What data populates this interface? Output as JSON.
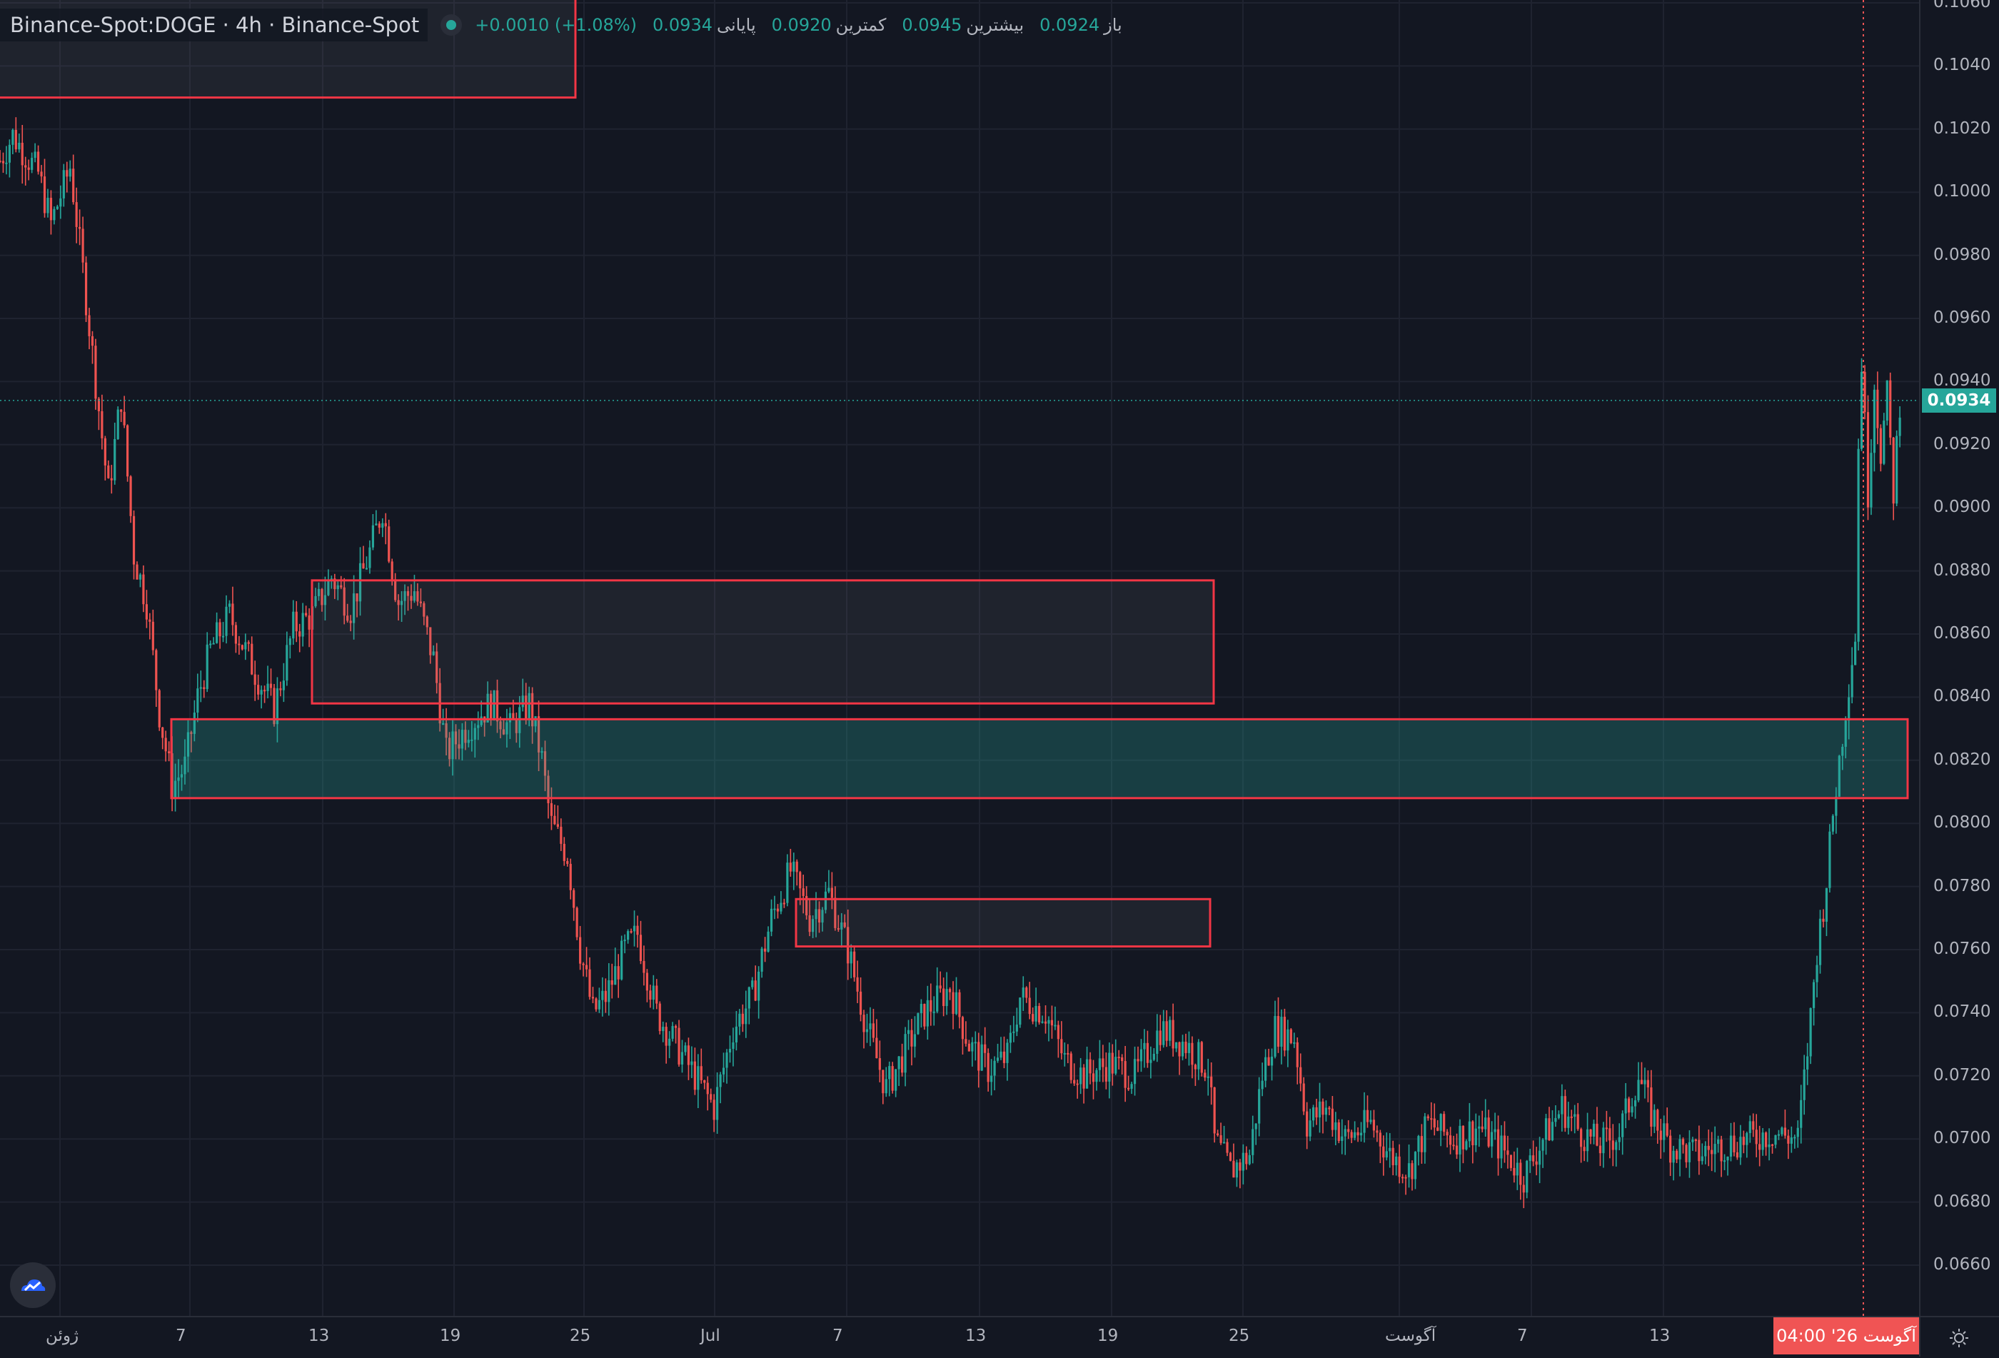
{
  "legend": {
    "symbol": "Binance-Spot:DOGE · 4h · Binance-Spot",
    "open_label": "باز",
    "open": "0.0924",
    "high_label": "بیشترین",
    "high": "0.0945",
    "low_label": "کمترین",
    "low": "0.0920",
    "close_label": "پایانی",
    "close": "0.0934",
    "change": "+0.0010 (+1.08%)"
  },
  "price_axis": {
    "ticks": [
      "0.1060",
      "0.1040",
      "0.1020",
      "0.1000",
      "0.0980",
      "0.0960",
      "0.0940",
      "0.0920",
      "0.0900",
      "0.0880",
      "0.0860",
      "0.0840",
      "0.0820",
      "0.0800",
      "0.0780",
      "0.0760",
      "0.0740",
      "0.0720",
      "0.0700",
      "0.0680",
      "0.0660"
    ],
    "current_price": "0.0934"
  },
  "time_axis": {
    "ticks": [
      "ژوئن",
      "7",
      "13",
      "19",
      "25",
      "Jul",
      "7",
      "13",
      "19",
      "25",
      "آگوست",
      "7",
      "13"
    ],
    "cursor_label": "04:00  '26 آگوست"
  },
  "colors": {
    "background": "#131722",
    "up": "#26a69a",
    "down": "#ef5350",
    "zone_border": "#f23645",
    "zone_fill_gray": "#2a2e39",
    "zone_fill_teal": "#1e4a4a"
  },
  "chart_data": {
    "type": "candlestick",
    "timeframe": "4h",
    "ylim": [
      0.065,
      0.1065
    ],
    "price_path": [
      [
        0,
        0.101
      ],
      [
        10,
        0.1018
      ],
      [
        30,
        0.1006
      ],
      [
        40,
        0.099
      ],
      [
        55,
        0.1008
      ],
      [
        65,
        0.0975
      ],
      [
        75,
        0.094
      ],
      [
        85,
        0.0905
      ],
      [
        95,
        0.0935
      ],
      [
        105,
        0.0885
      ],
      [
        115,
        0.087
      ],
      [
        125,
        0.0835
      ],
      [
        135,
        0.0812
      ],
      [
        145,
        0.0818
      ],
      [
        155,
        0.084
      ],
      [
        165,
        0.0855
      ],
      [
        180,
        0.0866
      ],
      [
        200,
        0.0848
      ],
      [
        215,
        0.0836
      ],
      [
        230,
        0.0862
      ],
      [
        245,
        0.0866
      ],
      [
        260,
        0.0878
      ],
      [
        275,
        0.0868
      ],
      [
        290,
        0.0886
      ],
      [
        300,
        0.09
      ],
      [
        312,
        0.087
      ],
      [
        325,
        0.0874
      ],
      [
        340,
        0.0852
      ],
      [
        350,
        0.0822
      ],
      [
        365,
        0.083
      ],
      [
        385,
        0.0838
      ],
      [
        400,
        0.083
      ],
      [
        415,
        0.0838
      ],
      [
        425,
        0.082
      ],
      [
        432,
        0.08
      ],
      [
        445,
        0.079
      ],
      [
        455,
        0.076
      ],
      [
        465,
        0.074
      ],
      [
        475,
        0.0745
      ],
      [
        490,
        0.076
      ],
      [
        500,
        0.0765
      ],
      [
        515,
        0.074
      ],
      [
        530,
        0.073
      ],
      [
        545,
        0.072
      ],
      [
        560,
        0.071
      ],
      [
        575,
        0.0735
      ],
      [
        590,
        0.0745
      ],
      [
        605,
        0.077
      ],
      [
        620,
        0.0785
      ],
      [
        635,
        0.077
      ],
      [
        650,
        0.0778
      ],
      [
        665,
        0.076
      ],
      [
        680,
        0.0735
      ],
      [
        695,
        0.0716
      ],
      [
        710,
        0.0728
      ],
      [
        725,
        0.074
      ],
      [
        745,
        0.0748
      ],
      [
        760,
        0.073
      ],
      [
        775,
        0.0722
      ],
      [
        790,
        0.0726
      ],
      [
        800,
        0.0745
      ],
      [
        820,
        0.074
      ],
      [
        835,
        0.0725
      ],
      [
        850,
        0.072
      ],
      [
        870,
        0.0724
      ],
      [
        890,
        0.072
      ],
      [
        910,
        0.0735
      ],
      [
        930,
        0.073
      ],
      [
        948,
        0.0722
      ],
      [
        952,
        0.07
      ],
      [
        965,
        0.069
      ],
      [
        980,
        0.0695
      ],
      [
        990,
        0.072
      ],
      [
        1000,
        0.0735
      ],
      [
        1015,
        0.0732
      ],
      [
        1025,
        0.0705
      ],
      [
        1040,
        0.071
      ],
      [
        1055,
        0.07
      ],
      [
        1075,
        0.0705
      ],
      [
        1090,
        0.0695
      ],
      [
        1105,
        0.069
      ],
      [
        1120,
        0.0705
      ],
      [
        1140,
        0.07
      ],
      [
        1160,
        0.0704
      ],
      [
        1180,
        0.0696
      ],
      [
        1195,
        0.0688
      ],
      [
        1210,
        0.07
      ],
      [
        1225,
        0.071
      ],
      [
        1240,
        0.0702
      ],
      [
        1255,
        0.0698
      ],
      [
        1270,
        0.0702
      ],
      [
        1285,
        0.072
      ],
      [
        1295,
        0.0708
      ],
      [
        1310,
        0.0698
      ],
      [
        1330,
        0.0695
      ],
      [
        1350,
        0.0698
      ],
      [
        1370,
        0.07
      ],
      [
        1390,
        0.0702
      ],
      [
        1410,
        0.07
      ],
      [
        1418,
        0.073
      ],
      [
        1425,
        0.076
      ],
      [
        1432,
        0.078
      ],
      [
        1438,
        0.0805
      ],
      [
        1444,
        0.0825
      ],
      [
        1450,
        0.0845
      ],
      [
        1455,
        0.086
      ],
      [
        1459,
        0.0955
      ],
      [
        1465,
        0.0905
      ],
      [
        1470,
        0.094
      ],
      [
        1475,
        0.0918
      ],
      [
        1480,
        0.0935
      ],
      [
        1485,
        0.0905
      ],
      [
        1490,
        0.0934
      ]
    ],
    "zones": [
      {
        "name": "top-left-zone",
        "price_top": 0.1075,
        "price_bottom": 0.103,
        "fill": "gray"
      },
      {
        "name": "upper-resistance-zone",
        "price_top": 0.0877,
        "price_bottom": 0.0838,
        "fill": "gray"
      },
      {
        "name": "support-zone",
        "price_top": 0.0833,
        "price_bottom": 0.0808,
        "fill": "teal"
      },
      {
        "name": "lower-resistance-zone",
        "price_top": 0.0776,
        "price_bottom": 0.0761,
        "fill": "gray"
      }
    ]
  }
}
